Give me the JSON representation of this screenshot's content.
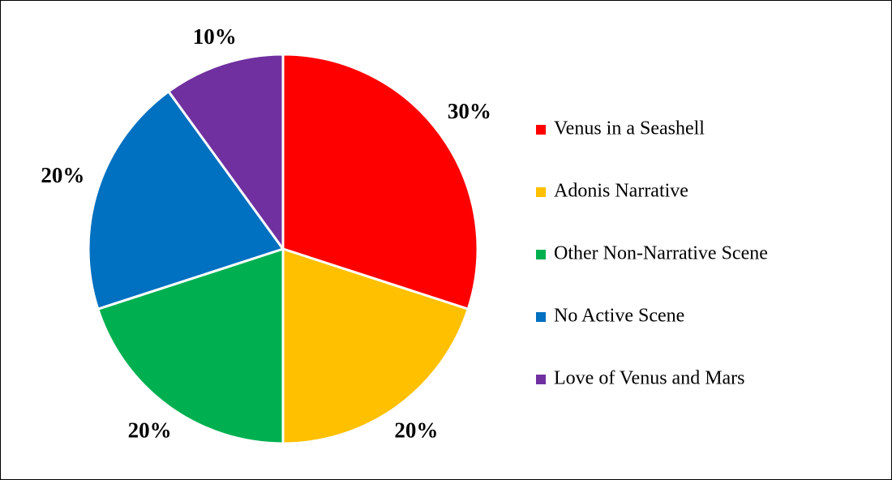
{
  "chart_data": {
    "type": "pie",
    "categories": [
      "Venus in a Seashell",
      "Adonis Narrative",
      "Other Non-Narrative Scene",
      "No Active Scene",
      "Love of Venus and Mars"
    ],
    "values": [
      30,
      20,
      20,
      20,
      10
    ],
    "value_labels": [
      "30%",
      "20%",
      "20%",
      "20%",
      "10%"
    ],
    "colors": [
      "#ff0000",
      "#ffc000",
      "#00b050",
      "#0070c0",
      "#7030a0"
    ],
    "legend": "right"
  }
}
